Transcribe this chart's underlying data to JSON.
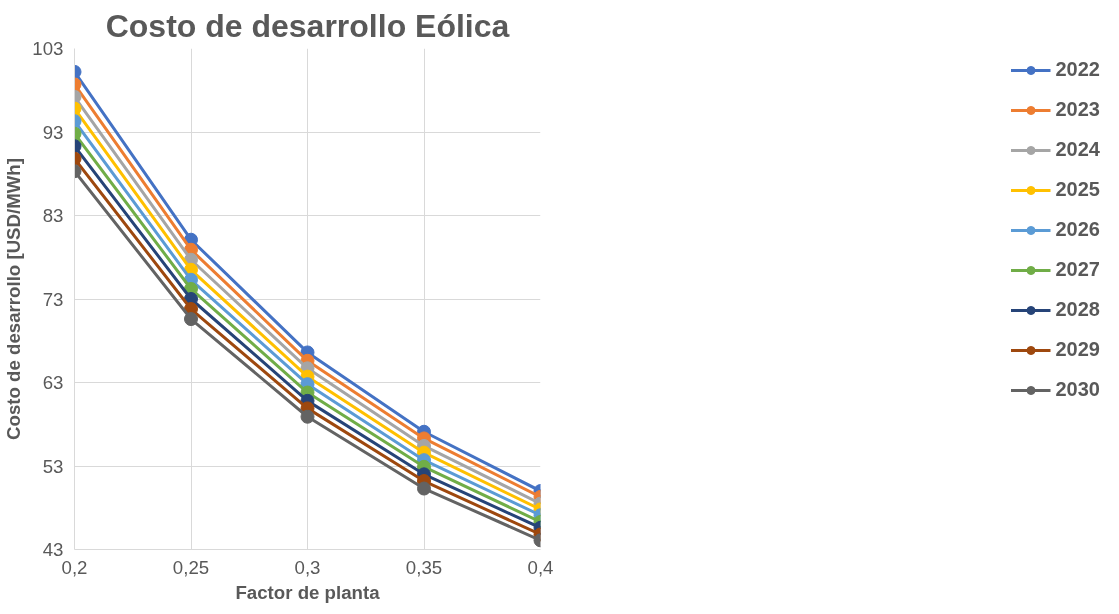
{
  "chart_data": {
    "type": "line",
    "title": "Costo de desarrollo Eólica",
    "xlabel": "Factor de planta",
    "ylabel": "Costo de desarrollo [USD/MWh]",
    "x": [
      0.2,
      0.25,
      0.3,
      0.35,
      0.4
    ],
    "xlim": [
      0.2,
      0.4
    ],
    "xticks": [
      {
        "value": 0.2,
        "label": "0,2"
      },
      {
        "value": 0.25,
        "label": "0,25"
      },
      {
        "value": 0.3,
        "label": "0,3"
      },
      {
        "value": 0.35,
        "label": "0,35"
      },
      {
        "value": 0.4,
        "label": "0,4"
      }
    ],
    "ylim": [
      43,
      103
    ],
    "yticks": [
      43,
      53,
      63,
      73,
      83,
      93,
      103
    ],
    "grid": true,
    "legend": "right",
    "marker": "circle",
    "line_style": "solid",
    "series": [
      {
        "name": "2022",
        "color": "#4472c4",
        "values": [
          100.2,
          80.1,
          66.6,
          57.1,
          50.0
        ]
      },
      {
        "name": "2023",
        "color": "#ed7d31",
        "values": [
          98.7,
          78.9,
          65.6,
          56.3,
          49.3
        ]
      },
      {
        "name": "2024",
        "color": "#a5a5a5",
        "values": [
          97.2,
          77.7,
          64.7,
          55.4,
          48.5
        ]
      },
      {
        "name": "2025",
        "color": "#ffc000",
        "values": [
          95.8,
          76.5,
          63.7,
          54.6,
          47.8
        ]
      },
      {
        "name": "2026",
        "color": "#5b9bd5",
        "values": [
          94.3,
          75.3,
          62.8,
          53.7,
          47.1
        ]
      },
      {
        "name": "2027",
        "color": "#70ad47",
        "values": [
          92.8,
          74.2,
          61.8,
          52.9,
          46.3
        ]
      },
      {
        "name": "2028",
        "color": "#264478",
        "values": [
          91.3,
          73.0,
          60.8,
          52.0,
          45.6
        ]
      },
      {
        "name": "2029",
        "color": "#9e480e",
        "values": [
          89.8,
          71.8,
          59.9,
          51.2,
          44.8
        ]
      },
      {
        "name": "2030",
        "color": "#636363",
        "values": [
          88.3,
          70.6,
          58.9,
          50.3,
          44.1
        ]
      }
    ]
  }
}
